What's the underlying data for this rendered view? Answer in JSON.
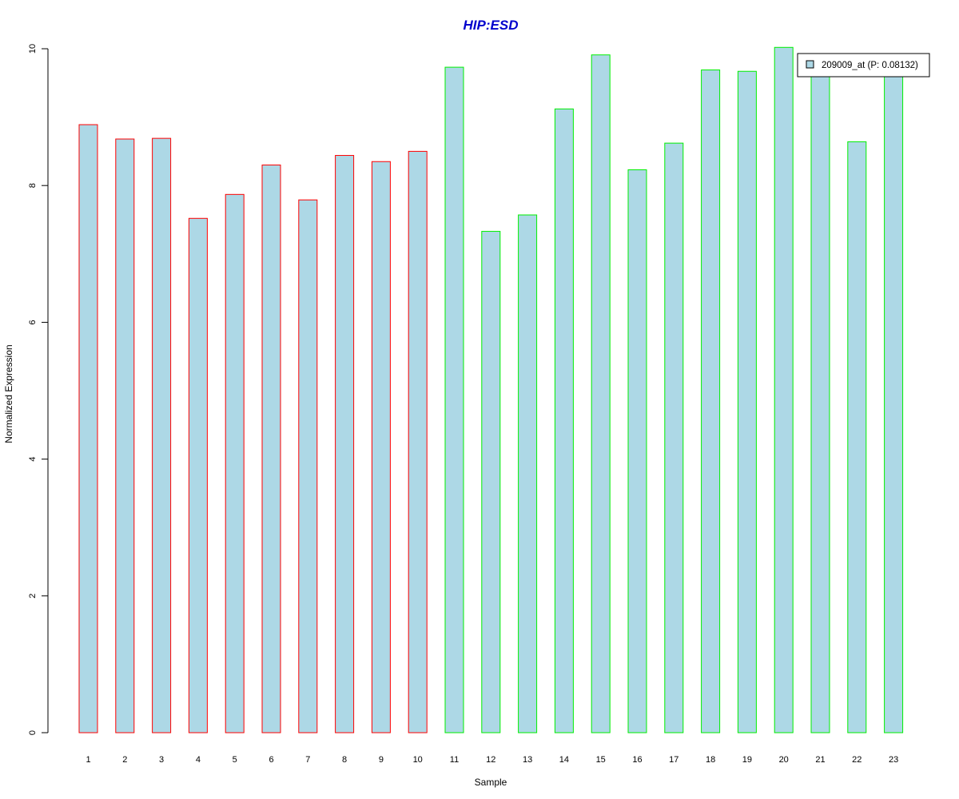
{
  "chart_data": {
    "type": "bar",
    "title": "HIP:ESD",
    "xlabel": "Sample",
    "ylabel": "Normalized Expression",
    "categories": [
      "1",
      "2",
      "3",
      "4",
      "5",
      "6",
      "7",
      "8",
      "9",
      "10",
      "11",
      "12",
      "13",
      "14",
      "15",
      "16",
      "17",
      "18",
      "19",
      "20",
      "21",
      "22",
      "23"
    ],
    "series": [
      {
        "name": "209009_at (P: 0.08132)",
        "values": [
          8.89,
          8.68,
          8.69,
          7.52,
          7.87,
          8.3,
          7.79,
          8.44,
          8.35,
          8.5,
          9.73,
          7.33,
          7.57,
          9.12,
          9.91,
          8.23,
          8.62,
          9.69,
          9.67,
          10.02,
          9.6,
          8.64,
          9.65
        ]
      }
    ],
    "groups": [
      {
        "categories_from": "1",
        "categories_to": "10",
        "border_color": "#ff0000"
      },
      {
        "categories_from": "11",
        "categories_to": "23",
        "border_color": "#00ee00"
      }
    ],
    "bar_fill": "#add8e6",
    "title_color": "#0000cd",
    "ylim": [
      0,
      10
    ],
    "yticks": [
      0,
      2,
      4,
      6,
      8,
      10
    ],
    "grid": false,
    "legend_position": "top-right"
  }
}
